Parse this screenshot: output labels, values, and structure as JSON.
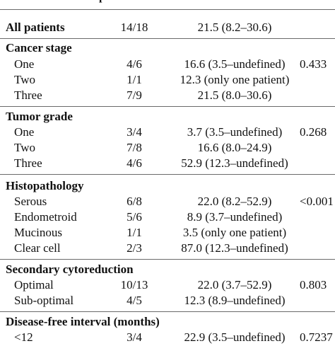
{
  "header_fragment": "patients",
  "all_patients": {
    "label": "All patients",
    "ratio": "14/18",
    "survival": "21.5 (8.2–30.6)"
  },
  "sections": [
    {
      "title": "Cancer stage",
      "p": "0.433",
      "rows": [
        {
          "label": "One",
          "ratio": "4/6",
          "survival": "16.6 (3.5–undefined)"
        },
        {
          "label": "Two",
          "ratio": "1/1",
          "survival": "12.3 (only one patient)"
        },
        {
          "label": "Three",
          "ratio": "7/9",
          "survival": "21.5 (8.0–30.6)"
        }
      ]
    },
    {
      "title": "Tumor grade",
      "p": "0.268",
      "rows": [
        {
          "label": "One",
          "ratio": "3/4",
          "survival": "3.7 (3.5–undefined)"
        },
        {
          "label": "Two",
          "ratio": "7/8",
          "survival": "16.6 (8.0–24.9)"
        },
        {
          "label": "Three",
          "ratio": "4/6",
          "survival": "52.9 (12.3–undefined)"
        }
      ]
    },
    {
      "title": "Histopathology",
      "p": "<0.001",
      "rows": [
        {
          "label": "Serous",
          "ratio": "6/8",
          "survival": "22.0 (8.2–52.9)"
        },
        {
          "label": "Endometroid",
          "ratio": "5/6",
          "survival": "8.9 (3.7–undefined)"
        },
        {
          "label": "Mucinous",
          "ratio": "1/1",
          "survival": "3.5 (only one patient)"
        },
        {
          "label": "Clear cell",
          "ratio": "2/3",
          "survival": "87.0 (12.3–undefined)"
        }
      ]
    },
    {
      "title": "Secondary cytoreduction",
      "p": "0.803",
      "rows": [
        {
          "label": "Optimal",
          "ratio": "10/13",
          "survival": "22.0 (3.7–52.9)"
        },
        {
          "label": "Sub-optimal",
          "ratio": "4/5",
          "survival": "12.3 (8.9–undefined)"
        }
      ]
    },
    {
      "title": "Disease-free interval (months)",
      "p": "0.7237",
      "rows": [
        {
          "label": "<12",
          "ratio": "3/4",
          "survival": "22.9 (3.5–undefined)"
        }
      ]
    }
  ]
}
